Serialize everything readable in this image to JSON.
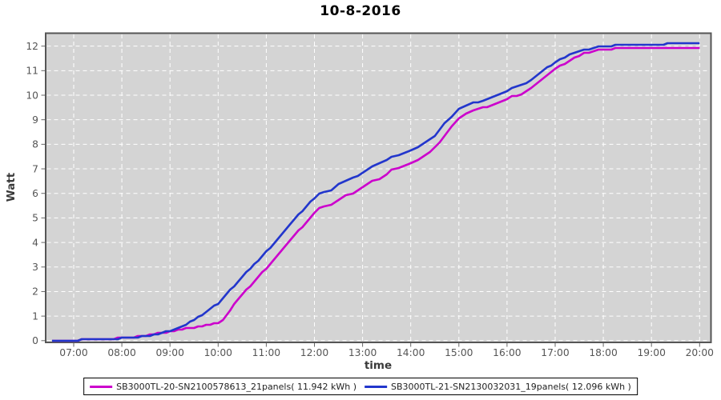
{
  "chart_data": {
    "type": "line",
    "title": "10-8-2016",
    "xlabel": "time",
    "ylabel": "Watt",
    "x_tick_labels": [
      "07:00",
      "08:00",
      "09:00",
      "10:00",
      "11:00",
      "12:00",
      "13:00",
      "14:00",
      "15:00",
      "16:00",
      "17:00",
      "18:00",
      "19:00",
      "20:00"
    ],
    "x_tick_hours": [
      7,
      8,
      9,
      10,
      11,
      12,
      13,
      14,
      15,
      16,
      17,
      18,
      19,
      20
    ],
    "y_ticks": [
      0,
      1,
      2,
      3,
      4,
      5,
      6,
      7,
      8,
      9,
      10,
      11,
      12
    ],
    "x_range_hours": [
      6.42,
      20.24
    ],
    "ylim": [
      -0.09,
      12.53
    ],
    "grid": true,
    "legend_position": "bottom",
    "colors": {
      "plot_bg": "#d4d4d4",
      "grid": "#ffffff",
      "plot_border": "#565656",
      "tick": "#666666",
      "tick_text": "#555555",
      "axis_label_text": "#3a3a3a",
      "title_text": "#000000",
      "legend_border": "#000000",
      "legend_bg": "#ffffff",
      "series0": "#cc00cc",
      "series1": "#2236cc"
    },
    "series": [
      {
        "name": "SB3000TL-20-SN2100578613_21panels( 11.942 kWh )",
        "color": "#cc00cc",
        "total_kwh": "11.942",
        "points": [
          [
            6.55,
            0.0
          ],
          [
            6.8,
            0.01
          ],
          [
            7.0,
            0.02
          ],
          [
            7.25,
            0.03
          ],
          [
            7.5,
            0.05
          ],
          [
            7.75,
            0.08
          ],
          [
            8.0,
            0.11
          ],
          [
            8.25,
            0.15
          ],
          [
            8.5,
            0.21
          ],
          [
            8.75,
            0.29
          ],
          [
            9.0,
            0.38
          ],
          [
            9.25,
            0.46
          ],
          [
            9.5,
            0.53
          ],
          [
            9.75,
            0.62
          ],
          [
            10.0,
            0.72
          ],
          [
            10.1,
            0.85
          ],
          [
            10.25,
            1.25
          ],
          [
            10.5,
            1.9
          ],
          [
            10.75,
            2.4
          ],
          [
            11.0,
            2.95
          ],
          [
            11.25,
            3.5
          ],
          [
            11.5,
            4.08
          ],
          [
            11.75,
            4.65
          ],
          [
            12.0,
            5.2
          ],
          [
            12.1,
            5.38
          ],
          [
            12.2,
            5.48
          ],
          [
            12.35,
            5.52
          ],
          [
            12.5,
            5.75
          ],
          [
            12.65,
            5.92
          ],
          [
            12.8,
            6.02
          ],
          [
            13.0,
            6.25
          ],
          [
            13.2,
            6.5
          ],
          [
            13.35,
            6.6
          ],
          [
            13.5,
            6.8
          ],
          [
            13.6,
            6.95
          ],
          [
            13.75,
            7.02
          ],
          [
            14.0,
            7.2
          ],
          [
            14.15,
            7.35
          ],
          [
            14.3,
            7.55
          ],
          [
            14.5,
            7.85
          ],
          [
            14.7,
            8.35
          ],
          [
            14.85,
            8.7
          ],
          [
            15.0,
            9.05
          ],
          [
            15.15,
            9.22
          ],
          [
            15.3,
            9.35
          ],
          [
            15.5,
            9.48
          ],
          [
            15.75,
            9.62
          ],
          [
            16.0,
            9.85
          ],
          [
            16.1,
            9.95
          ],
          [
            16.3,
            10.05
          ],
          [
            16.5,
            10.3
          ],
          [
            16.75,
            10.7
          ],
          [
            17.0,
            11.05
          ],
          [
            17.2,
            11.3
          ],
          [
            17.4,
            11.55
          ],
          [
            17.6,
            11.7
          ],
          [
            17.8,
            11.8
          ],
          [
            18.0,
            11.86
          ],
          [
            18.25,
            11.9
          ],
          [
            18.5,
            11.92
          ],
          [
            19.0,
            11.93
          ],
          [
            19.5,
            11.94
          ],
          [
            20.0,
            11.942
          ]
        ]
      },
      {
        "name": "SB3000TL-21-SN2130032031_19panels( 12.096 kWh )",
        "color": "#2236cc",
        "total_kwh": "12.096",
        "points": [
          [
            6.55,
            0.0
          ],
          [
            6.8,
            0.01
          ],
          [
            7.0,
            0.02
          ],
          [
            7.25,
            0.03
          ],
          [
            7.5,
            0.05
          ],
          [
            7.75,
            0.07
          ],
          [
            8.0,
            0.1
          ],
          [
            8.25,
            0.13
          ],
          [
            8.5,
            0.19
          ],
          [
            8.75,
            0.28
          ],
          [
            9.0,
            0.4
          ],
          [
            9.25,
            0.58
          ],
          [
            9.5,
            0.85
          ],
          [
            9.75,
            1.15
          ],
          [
            10.0,
            1.52
          ],
          [
            10.25,
            2.05
          ],
          [
            10.5,
            2.6
          ],
          [
            10.75,
            3.1
          ],
          [
            11.0,
            3.62
          ],
          [
            11.25,
            4.18
          ],
          [
            11.5,
            4.75
          ],
          [
            11.75,
            5.3
          ],
          [
            12.0,
            5.82
          ],
          [
            12.1,
            5.98
          ],
          [
            12.2,
            6.08
          ],
          [
            12.35,
            6.12
          ],
          [
            12.5,
            6.35
          ],
          [
            12.65,
            6.52
          ],
          [
            12.8,
            6.62
          ],
          [
            13.0,
            6.82
          ],
          [
            13.2,
            7.1
          ],
          [
            13.35,
            7.2
          ],
          [
            13.5,
            7.35
          ],
          [
            13.6,
            7.5
          ],
          [
            13.75,
            7.55
          ],
          [
            14.0,
            7.72
          ],
          [
            14.15,
            7.85
          ],
          [
            14.3,
            8.05
          ],
          [
            14.5,
            8.35
          ],
          [
            14.7,
            8.85
          ],
          [
            14.85,
            9.15
          ],
          [
            15.0,
            9.45
          ],
          [
            15.15,
            9.58
          ],
          [
            15.3,
            9.68
          ],
          [
            15.5,
            9.78
          ],
          [
            15.75,
            9.95
          ],
          [
            16.0,
            10.18
          ],
          [
            16.1,
            10.3
          ],
          [
            16.3,
            10.4
          ],
          [
            16.5,
            10.62
          ],
          [
            16.75,
            11.0
          ],
          [
            17.0,
            11.35
          ],
          [
            17.2,
            11.55
          ],
          [
            17.4,
            11.75
          ],
          [
            17.6,
            11.85
          ],
          [
            17.8,
            11.93
          ],
          [
            18.0,
            11.99
          ],
          [
            18.25,
            12.03
          ],
          [
            18.5,
            12.06
          ],
          [
            19.0,
            12.08
          ],
          [
            19.5,
            12.09
          ],
          [
            20.0,
            12.096
          ]
        ]
      }
    ]
  }
}
